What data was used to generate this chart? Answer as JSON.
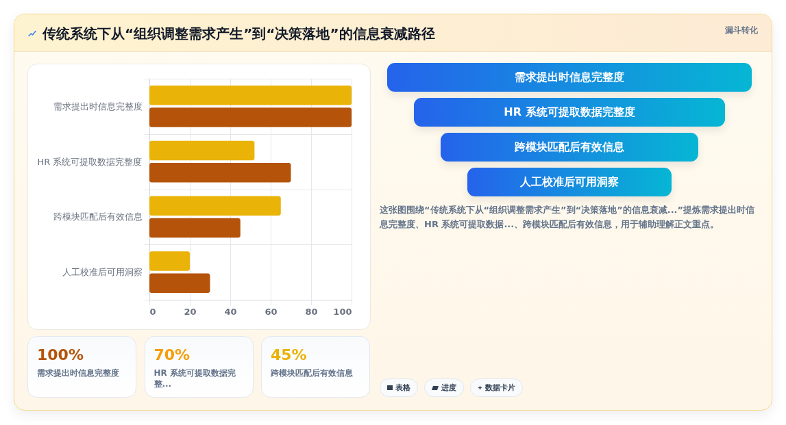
{
  "chart_data": [
    {
      "type": "bar",
      "title": "传统系统下从“组织调整需求产生”到“决策落地”的信息衰减路径",
      "orientation": "horizontal",
      "categories": [
        "需求提出时信息完整度",
        "HR 系统可提取数据完整度",
        "跨模块匹配后有效信息",
        "人工校准后可用洞察"
      ],
      "series": [
        {
          "color": "#eab308",
          "values": [
            100,
            52,
            65,
            20
          ]
        },
        {
          "color": "#b45309",
          "values": [
            100,
            70,
            45,
            30
          ]
        }
      ],
      "xlim": [
        0,
        100
      ],
      "xticks": [
        0,
        20,
        40,
        60,
        80,
        100
      ],
      "grid": true
    },
    {
      "type": "other",
      "subtitle": "漏斗转化",
      "categories": [
        "需求提出时信息完整度",
        "HR 系统可提取数据完整度",
        "跨模块匹配后有效信息",
        "人工校准后可用洞察"
      ],
      "annotations": [
        "这张图围绕“传统系统下从“组织调整需求产生”到“决策落地”的信息衰减...”提炼需求提出时信息完整度、HR 系统可提取数据...、跨模块匹配后有效信息，用于辅助理解正文重点。",
        "表格",
        "进度",
        "数据卡片"
      ]
    },
    {
      "type": "other",
      "categories": [
        "需求提出时信息完整度",
        "HR 系统可提取数据完整...",
        "跨模块匹配后有效信息"
      ],
      "value_labels": [
        "100%",
        "70%",
        "45%"
      ]
    }
  ]
}
